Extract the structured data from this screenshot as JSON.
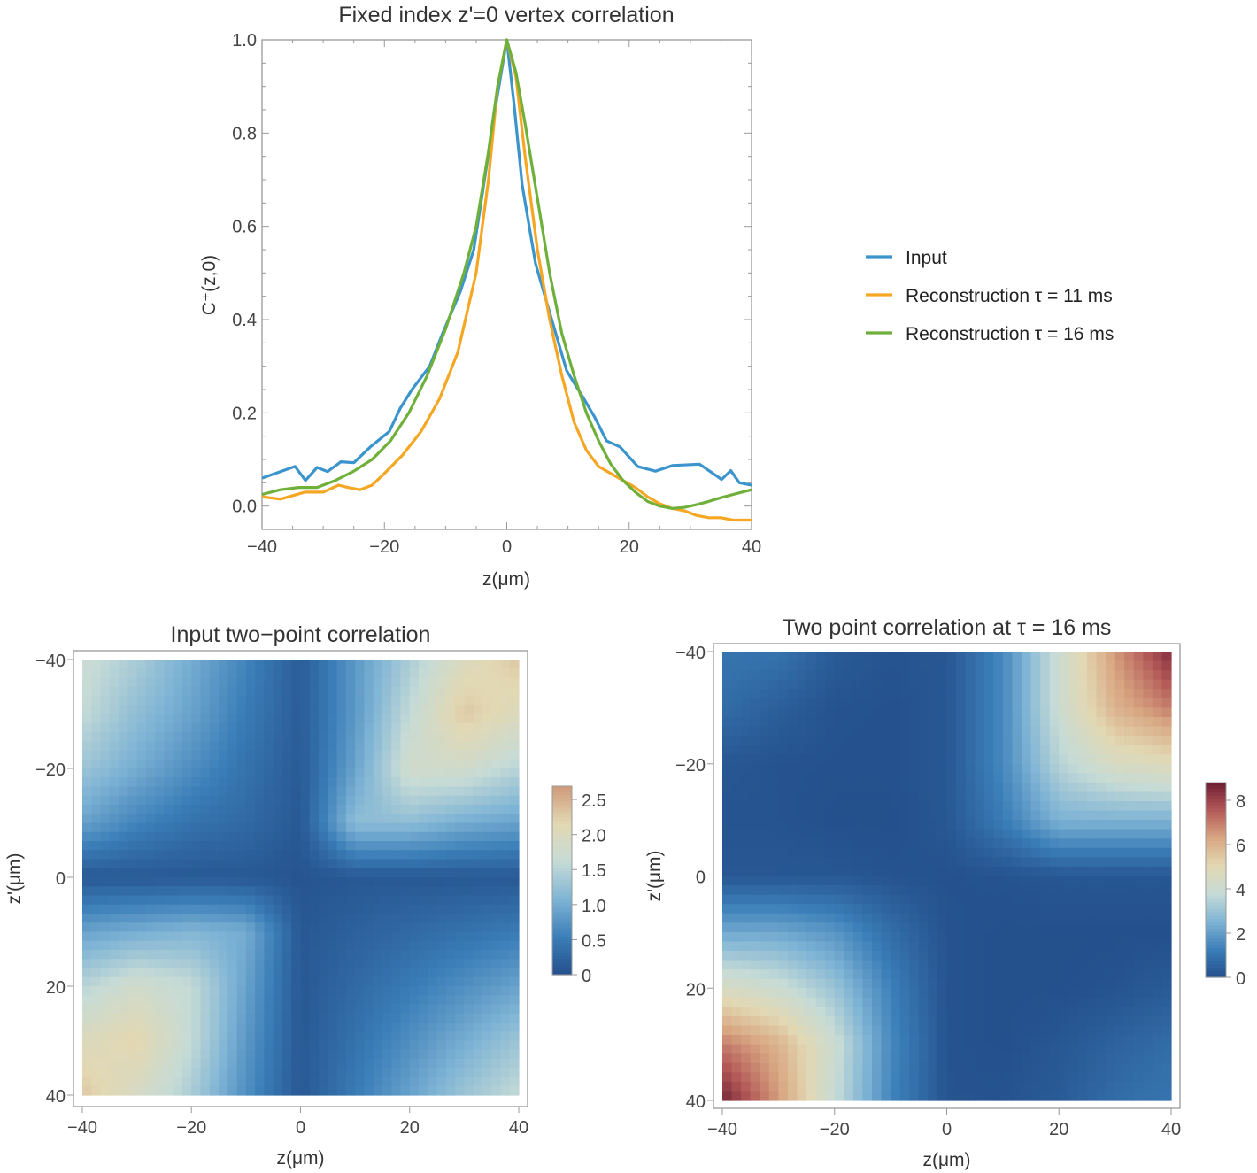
{
  "chart_data": [
    {
      "type": "line",
      "title": "Fixed index z'=0 vertex correlation",
      "xlabel": "z(μm)",
      "ylabel": "C⁺(z,0)",
      "xlim": [
        -40,
        40
      ],
      "ylim": [
        -0.05,
        1.0
      ],
      "x_ticks": [
        "−40",
        "−20",
        "0",
        "20",
        "40"
      ],
      "x_tick_values": [
        -40,
        -20,
        0,
        20,
        40
      ],
      "y_ticks": [
        "0.0",
        "0.2",
        "0.4",
        "0.6",
        "0.8",
        "1.0"
      ],
      "y_tick_values": [
        0,
        0.2,
        0.4,
        0.6,
        0.8,
        1.0
      ],
      "grid": false,
      "legend_placement": "right",
      "series": [
        {
          "name": "Input",
          "color": "#3b94cc",
          "x": [
            -40,
            -34.6,
            -32.9,
            -31,
            -29.3,
            -27.1,
            -25,
            -22.3,
            -19.2,
            -17.4,
            -15.5,
            -12.6,
            -10.5,
            -7.6,
            -5.4,
            -4,
            -1.8,
            0,
            1.2,
            2.5,
            4.7,
            6.9,
            9.8,
            12.7,
            14.4,
            16.3,
            18.5,
            21.4,
            24.3,
            27.1,
            31.5,
            33.7,
            35.1,
            36.6,
            38,
            40
          ],
          "y": [
            0.06,
            0.085,
            0.055,
            0.083,
            0.074,
            0.095,
            0.093,
            0.127,
            0.16,
            0.21,
            0.25,
            0.3,
            0.37,
            0.46,
            0.55,
            0.67,
            0.86,
            1.0,
            0.86,
            0.69,
            0.52,
            0.42,
            0.29,
            0.228,
            0.19,
            0.14,
            0.127,
            0.085,
            0.075,
            0.087,
            0.09,
            0.07,
            0.057,
            0.076,
            0.05,
            0.045
          ]
        },
        {
          "name": "Reconstruction τ = 11 ms",
          "color": "#f5a623",
          "x": [
            -40,
            -37,
            -33,
            -30,
            -27.5,
            -26,
            -24,
            -22,
            -20,
            -17,
            -14,
            -11,
            -8,
            -5,
            -3,
            -1.5,
            0,
            1.5,
            3,
            5,
            7,
            9,
            11,
            13,
            15,
            17,
            19,
            21,
            23,
            25,
            27,
            29,
            31,
            33,
            35,
            37,
            40
          ],
          "y": [
            0.02,
            0.015,
            0.03,
            0.03,
            0.045,
            0.04,
            0.035,
            0.045,
            0.07,
            0.11,
            0.16,
            0.23,
            0.33,
            0.5,
            0.7,
            0.9,
            1.0,
            0.92,
            0.75,
            0.55,
            0.4,
            0.28,
            0.18,
            0.12,
            0.085,
            0.07,
            0.055,
            0.04,
            0.02,
            0.005,
            -0.005,
            -0.01,
            -0.02,
            -0.025,
            -0.025,
            -0.03,
            -0.03
          ]
        },
        {
          "name": "Reconstruction τ = 16 ms",
          "color": "#6fb03a",
          "x": [
            -40,
            -37,
            -34,
            -31,
            -28,
            -25,
            -22,
            -19,
            -16,
            -13,
            -10,
            -7,
            -5,
            -3,
            -1.5,
            0,
            1.5,
            3,
            5,
            7,
            9,
            11,
            13,
            15,
            17,
            19,
            21,
            23,
            25,
            27,
            29,
            31,
            33,
            35,
            37,
            40
          ],
          "y": [
            0.025,
            0.035,
            0.04,
            0.04,
            0.055,
            0.075,
            0.1,
            0.14,
            0.2,
            0.28,
            0.38,
            0.5,
            0.6,
            0.76,
            0.9,
            1.0,
            0.93,
            0.82,
            0.66,
            0.5,
            0.37,
            0.28,
            0.2,
            0.14,
            0.09,
            0.055,
            0.03,
            0.01,
            0,
            -0.005,
            -0.003,
            0.003,
            0.01,
            0.018,
            0.025,
            0.035
          ]
        }
      ]
    },
    {
      "type": "heatmap",
      "title": "Input two−point correlation",
      "xlabel": "z(μm)",
      "ylabel": "z'(μm)",
      "x_values": [
        -40,
        -30,
        -20,
        -10,
        0,
        10,
        20,
        30,
        40
      ],
      "y_values": [
        -40,
        -30,
        -20,
        -10,
        0,
        10,
        20,
        30,
        40
      ],
      "x_ticks": [
        "−40",
        "−20",
        "0",
        "20",
        "40"
      ],
      "y_ticks": [
        "−40",
        "−20",
        "0",
        "20",
        "40"
      ],
      "tick_values": [
        -40,
        -20,
        0,
        20,
        40
      ],
      "values": [
        [
          1.7,
          1.4,
          1.0,
          0.6,
          0.15,
          0.8,
          1.4,
          2.0,
          2.3
        ],
        [
          1.6,
          1.2,
          0.9,
          0.5,
          0.15,
          0.8,
          1.6,
          2.3,
          2.0
        ],
        [
          1.3,
          1.0,
          0.7,
          0.4,
          0.12,
          0.9,
          1.8,
          1.8,
          1.5
        ],
        [
          0.9,
          0.6,
          0.4,
          0.3,
          0.1,
          1.2,
          1.2,
          1.0,
          0.9
        ],
        [
          0.1,
          0.1,
          0.1,
          0.1,
          0.05,
          0.1,
          0.1,
          0.1,
          0.1
        ],
        [
          0.9,
          1.0,
          1.1,
          1.0,
          0.1,
          0.2,
          0.3,
          0.4,
          0.5
        ],
        [
          1.5,
          1.8,
          1.6,
          0.9,
          0.1,
          0.3,
          0.5,
          0.7,
          0.9
        ],
        [
          2.0,
          2.2,
          1.6,
          0.8,
          0.1,
          0.4,
          0.7,
          1.0,
          1.3
        ],
        [
          2.3,
          1.9,
          1.4,
          0.7,
          0.1,
          0.5,
          0.9,
          1.3,
          1.6
        ]
      ],
      "colorbar": {
        "range": [
          0,
          2.69
        ],
        "ticks": [
          "0",
          "0.5",
          "1.0",
          "1.5",
          "2.0",
          "2.5"
        ],
        "tick_values": [
          0,
          0.5,
          1.0,
          1.5,
          2.0,
          2.5
        ]
      },
      "colors": [
        "#24508c",
        "#3b7eb8",
        "#7fb4d5",
        "#c6dbd6",
        "#e2d8b3",
        "#cf9a7a"
      ]
    },
    {
      "type": "heatmap",
      "title": "Two point correlation at τ = 16 ms",
      "xlabel": "z(μm)",
      "ylabel": "z'(μm)",
      "x_values": [
        -40,
        -30,
        -20,
        -10,
        0,
        10,
        20,
        30,
        40
      ],
      "y_values": [
        -40,
        -30,
        -20,
        -10,
        0,
        10,
        20,
        30,
        40
      ],
      "x_ticks": [
        "−40",
        "−20",
        "0",
        "20",
        "40"
      ],
      "y_ticks": [
        "−40",
        "−20",
        "0",
        "20",
        "40"
      ],
      "tick_values": [
        -40,
        -20,
        0,
        20,
        40
      ],
      "values": [
        [
          1.0,
          1.0,
          0.3,
          0.1,
          0.2,
          1.5,
          4.0,
          6.5,
          8.5
        ],
        [
          0.8,
          0.4,
          0.1,
          0.05,
          0.2,
          1.5,
          4.0,
          6.0,
          7.0
        ],
        [
          0.2,
          0.1,
          0.05,
          0.05,
          0.2,
          1.5,
          3.5,
          4.5,
          4.8
        ],
        [
          0.1,
          0.1,
          0,
          0,
          0.2,
          1.2,
          2.5,
          2.5,
          2.5
        ],
        [
          0.2,
          0.2,
          0.2,
          0.1,
          0.05,
          0.1,
          0.2,
          0.2,
          0.2
        ],
        [
          2.2,
          2.2,
          1.8,
          0.8,
          0.1,
          0,
          0,
          0,
          0
        ],
        [
          4.5,
          4.0,
          3.0,
          1.3,
          0.1,
          0,
          0,
          0.1,
          0.3
        ],
        [
          7.0,
          6.0,
          4.0,
          1.5,
          0.1,
          0,
          0.2,
          0.5,
          0.8
        ],
        [
          8.7,
          6.5,
          3.8,
          1.4,
          0.1,
          0.1,
          0.3,
          0.8,
          1.0
        ]
      ],
      "colorbar": {
        "range": [
          0,
          8.8
        ],
        "ticks": [
          "0",
          "2",
          "4",
          "6",
          "8"
        ],
        "tick_values": [
          0,
          2,
          4,
          6,
          8
        ]
      },
      "colors": [
        "#24508c",
        "#3b7eb8",
        "#7fb4d5",
        "#c6dbd6",
        "#e2d8b3",
        "#d8a782",
        "#b45a58",
        "#6e1f33"
      ]
    }
  ]
}
